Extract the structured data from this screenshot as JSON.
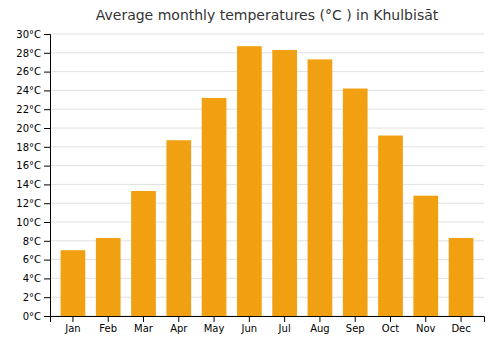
{
  "chart_data": {
    "type": "bar",
    "title": "Average monthly temperatures (°C ) in Khulbisāt",
    "categories": [
      "Jan",
      "Feb",
      "Mar",
      "Apr",
      "May",
      "Jun",
      "Jul",
      "Aug",
      "Sep",
      "Oct",
      "Nov",
      "Dec"
    ],
    "values": [
      7.0,
      8.3,
      13.3,
      18.7,
      23.2,
      28.7,
      28.3,
      27.3,
      24.2,
      19.2,
      12.8,
      8.3
    ],
    "color": "#F0A010",
    "ylim": [
      0,
      30
    ],
    "yticks": [
      {
        "value": 0,
        "label": "0°C"
      },
      {
        "value": 2,
        "label": "2°C"
      },
      {
        "value": 4,
        "label": "4°C"
      },
      {
        "value": 6,
        "label": "6°C"
      },
      {
        "value": 8,
        "label": "8°C"
      },
      {
        "value": 10,
        "label": "10°C"
      },
      {
        "value": 12,
        "label": "12°C"
      },
      {
        "value": 14,
        "label": "14°C"
      },
      {
        "value": 16,
        "label": "16°C"
      },
      {
        "value": 18,
        "label": "18°C"
      },
      {
        "value": 20,
        "label": "20°C"
      },
      {
        "value": 22,
        "label": "22°C"
      },
      {
        "value": 24,
        "label": "24°C"
      },
      {
        "value": 26,
        "label": "26°C"
      },
      {
        "value": 28,
        "label": "28°C"
      },
      {
        "value": 30,
        "label": "30°C"
      }
    ],
    "grid": true
  }
}
